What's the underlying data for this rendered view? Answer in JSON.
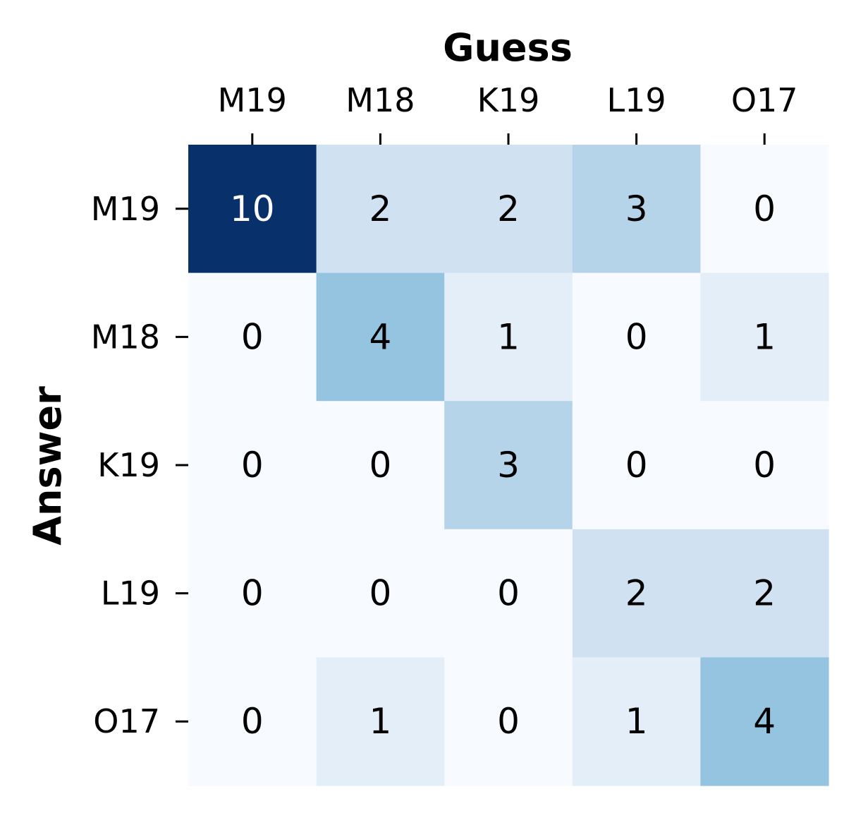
{
  "chart_data": {
    "type": "heatmap",
    "xlabel": "Guess",
    "ylabel": "Answer",
    "x_categories": [
      "M19",
      "M18",
      "K19",
      "L19",
      "O17"
    ],
    "y_categories": [
      "M19",
      "M18",
      "K19",
      "L19",
      "O17"
    ],
    "values": [
      [
        10,
        2,
        2,
        3,
        0
      ],
      [
        0,
        4,
        1,
        0,
        1
      ],
      [
        0,
        0,
        3,
        0,
        0
      ],
      [
        0,
        0,
        0,
        2,
        2
      ],
      [
        0,
        1,
        0,
        1,
        4
      ]
    ],
    "color_range": [
      0,
      10
    ],
    "colormap": "Blues",
    "x_axis_position": "top",
    "colorbar": false,
    "grid": false
  }
}
